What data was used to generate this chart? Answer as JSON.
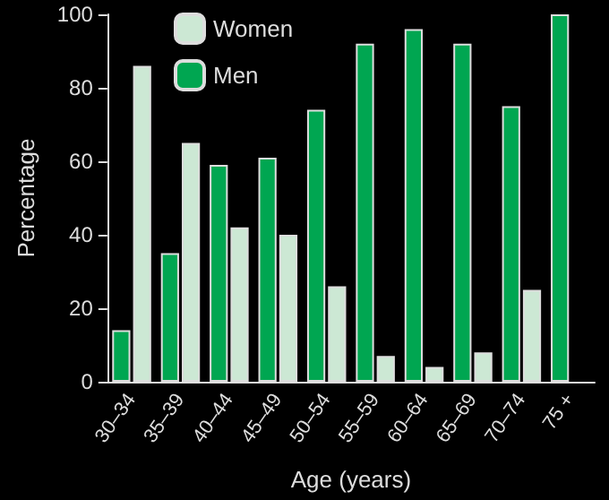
{
  "chart_data": {
    "type": "bar",
    "xlabel": "Age (years)",
    "ylabel": "Percentage",
    "categories": [
      "30–34",
      "35–39",
      "40–44",
      "45–49",
      "50–54",
      "55–59",
      "60–64",
      "65–69",
      "70–74",
      "75 +"
    ],
    "series": [
      {
        "name": "Men",
        "color": "#00a651",
        "values": [
          14,
          35,
          59,
          61,
          74,
          92,
          96,
          92,
          75,
          100
        ]
      },
      {
        "name": "Women",
        "color": "#cce8d4",
        "values": [
          86,
          65,
          42,
          40,
          26,
          7,
          4,
          8,
          25,
          null
        ]
      }
    ],
    "ylim": [
      0,
      100
    ],
    "yticks": [
      0,
      20,
      40,
      60,
      80,
      100
    ],
    "grid": false,
    "legend": "top left"
  }
}
